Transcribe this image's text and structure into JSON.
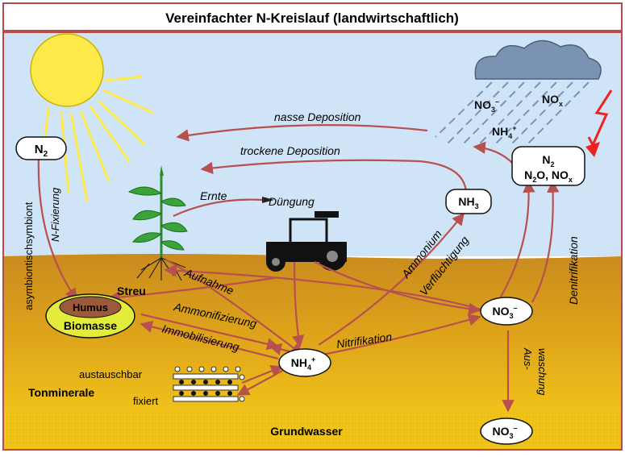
{
  "title": "Vereinfachter N-Kreislauf (landwirtschaftlich)",
  "colors": {
    "frame": "#b84a4a",
    "sky": "#cfe5f7",
    "soil_top": "#c78a1f",
    "soil_bottom": "#e8b81a",
    "groundwater": "#f0c419",
    "arrow": "#b85050",
    "sun": "#fde94a",
    "sun_rays": "#fde94a",
    "cloud": "#7b93b3",
    "rain": "#7b93b3",
    "lightning": "#ee2222",
    "humus": "#9b5a3a",
    "biomass": "#e3ec3a",
    "plant": "#2e8a2e",
    "tractor": "#222222"
  },
  "labels": {
    "n2_left": {
      "main": "N",
      "sub": "2"
    },
    "n2_right": {
      "line1_main": "N",
      "line1_sub": "2",
      "line2_a": "N",
      "line2_a_sub": "2",
      "line2_b": "O, NO",
      "line2_b_sub": "x"
    },
    "nh3": {
      "main": "NH",
      "sub": "3"
    },
    "nh4": {
      "main": "NH",
      "sub": "4",
      "sup": "+"
    },
    "no3_soil": {
      "main": "NO",
      "sub": "3",
      "sup": "–"
    },
    "no3_groundwater": {
      "main": "NO",
      "sub": "3",
      "sup": "–"
    },
    "rain_no3": {
      "main": "NO",
      "sub": "3",
      "sup": "–"
    },
    "rain_nox": {
      "main": "NO",
      "sub": "x"
    },
    "rain_nh4": {
      "main": "NH",
      "sub": "4",
      "sup": "+"
    },
    "humus": "Humus",
    "biomasse": "Biomasse",
    "streu": "Streu",
    "tonminerale": "Tonminerale",
    "austauschbar": "austauschbar",
    "fixiert": "fixiert",
    "grundwasser": "Grundwasser",
    "duengung": "Düngung",
    "ernte": "Ernte"
  },
  "processes": {
    "nasse_deposition": "nasse Deposition",
    "trockene_deposition": "trockene Deposition",
    "asymbiontisch": "asymbiontisch",
    "symbiont": "symbiont",
    "n_fixierung": "N-Fixierung",
    "aufnahme": "Aufnahme",
    "ammonifizierung": "Ammonifizierung",
    "immobilisierung": "Immobilisierung",
    "nitrifikation": "Nitrifikation",
    "ammonium": "Ammonium",
    "verfluechtigung": "Verflüchtigung",
    "denitrifikation": "Denitrifikation",
    "aus": "Aus-",
    "waschung": "waschung"
  }
}
